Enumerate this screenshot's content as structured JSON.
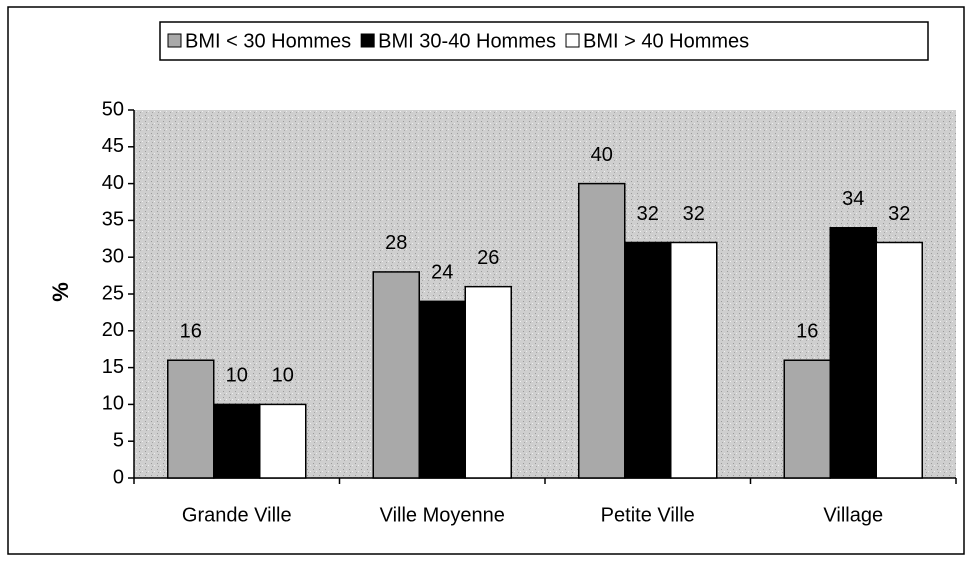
{
  "chart_data": {
    "type": "bar",
    "y_label": "%",
    "categories": [
      "Grande Ville",
      "Ville Moyenne",
      "Petite Ville",
      "Village"
    ],
    "series": [
      {
        "name": "BMI < 30 Hommes",
        "color": "#a9a9a9",
        "values": [
          16,
          28,
          40,
          16
        ]
      },
      {
        "name": "BMI 30-40 Hommes",
        "color": "#000000",
        "values": [
          10,
          24,
          32,
          34
        ]
      },
      {
        "name": "BMI > 40 Hommes",
        "color": "#ffffff",
        "values": [
          10,
          26,
          32,
          32
        ]
      }
    ],
    "ylim": [
      0,
      50
    ],
    "yticks": [
      0,
      5,
      10,
      15,
      20,
      25,
      30,
      35,
      40,
      45,
      50
    ],
    "grid": false,
    "legend": "top"
  }
}
